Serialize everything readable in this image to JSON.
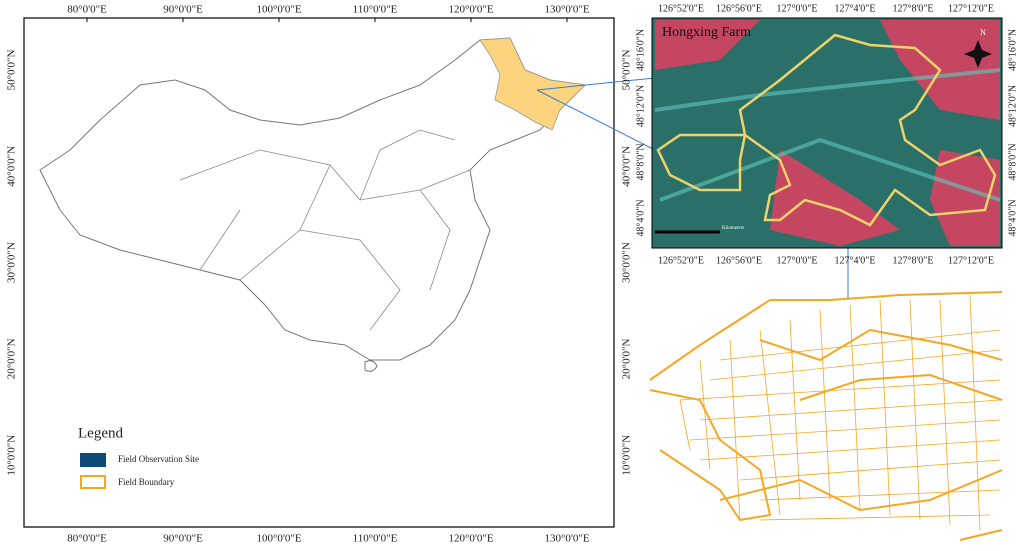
{
  "main_map": {
    "lon_labels": [
      "80°0'0\"E",
      "90°0'0\"E",
      "100°0'0\"E",
      "110°0'0\"E",
      "120°0'0\"E",
      "130°0'0\"E"
    ],
    "lat_labels": [
      "50°0'0\"N",
      "40°0'0\"N",
      "30°0'0\"N",
      "20°0'0\"N",
      "10°0'0\"N"
    ],
    "legend": {
      "title": "Legend",
      "items": [
        {
          "label": "Field Observation Site"
        },
        {
          "label": "Field Boundary"
        }
      ]
    }
  },
  "inset": {
    "title": "Hongxing Farm",
    "lon_labels": [
      "126°52'0\"E",
      "126°56'0\"E",
      "127°0'0\"E",
      "127°4'0\"E",
      "127°8'0\"E",
      "127°12'0\"E"
    ],
    "lat_labels": [
      "48°16'0\"N",
      "48°12'0\"N",
      "48°8'0\"N",
      "48°4'0\"N"
    ],
    "scale_unit": "Kilometers",
    "north": "N"
  }
}
